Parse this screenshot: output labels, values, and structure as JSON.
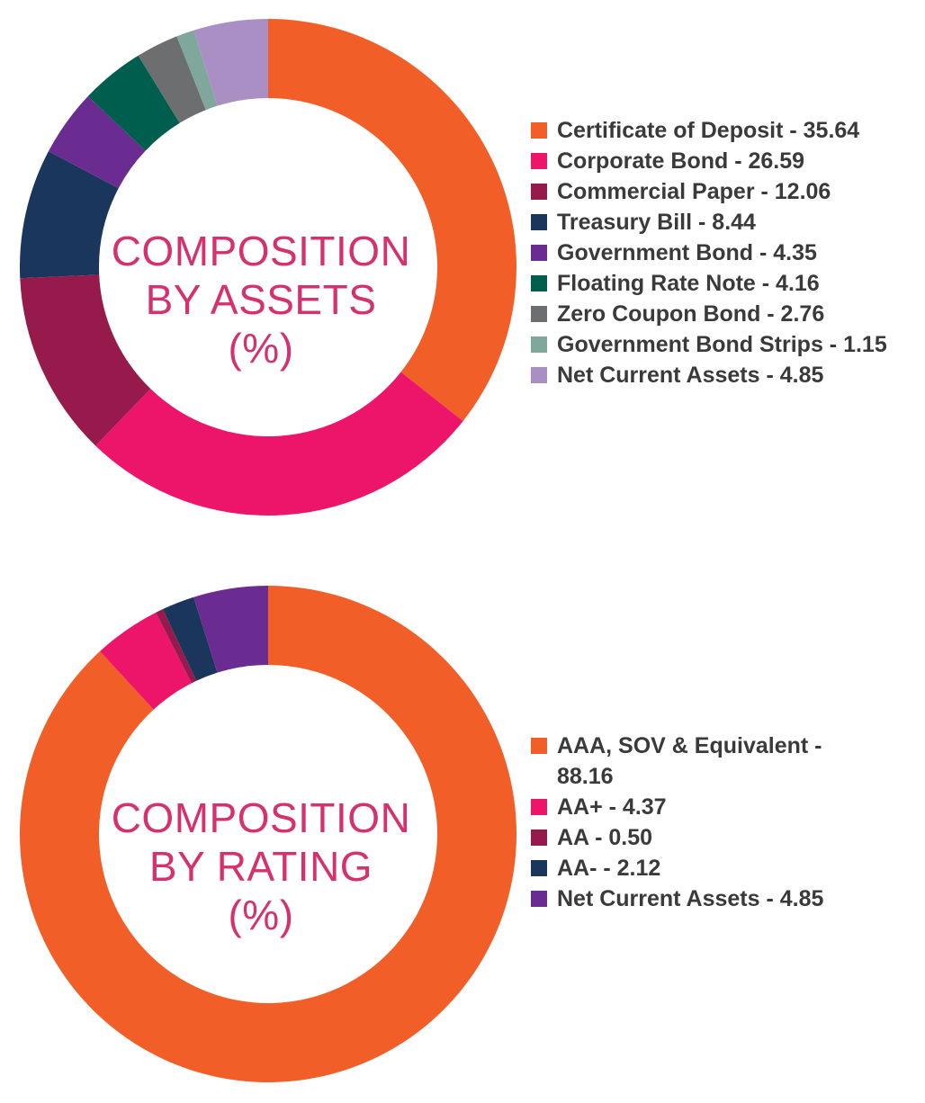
{
  "chart_data": [
    {
      "type": "pie",
      "center_text": [
        "COMPOSITION",
        "BY ASSETS",
        "(%)"
      ],
      "legend_placement": "right",
      "series": [
        {
          "name": "Certificate of Deposit",
          "value": 35.64,
          "label": "Certificate of Deposit - 35.64",
          "color": "#f15e28"
        },
        {
          "name": "Corporate Bond",
          "value": 26.59,
          "label": "Corporate Bond - 26.59",
          "color": "#ed1569"
        },
        {
          "name": "Commercial Paper",
          "value": 12.06,
          "label": "Commercial Paper - 12.06",
          "color": "#961a4c"
        },
        {
          "name": "Treasury Bill",
          "value": 8.44,
          "label": "Treasury Bill - 8.44",
          "color": "#1b365d"
        },
        {
          "name": "Government Bond",
          "value": 4.35,
          "label": "Government Bond - 4.35",
          "color": "#6a2c91"
        },
        {
          "name": "Floating Rate Note",
          "value": 4.16,
          "label": "Floating Rate Note - 4.16",
          "color": "#005e4f"
        },
        {
          "name": "Zero Coupon Bond",
          "value": 2.76,
          "label": "Zero Coupon Bond - 2.76",
          "color": "#6d6e70"
        },
        {
          "name": "Government Bond Strips",
          "value": 1.15,
          "label": "Government Bond Strips - 1.15",
          "color": "#7fa79c"
        },
        {
          "name": "Net Current Assets",
          "value": 4.85,
          "label": "Net Current Assets - 4.85",
          "color": "#a98fc3"
        }
      ]
    },
    {
      "type": "pie",
      "center_text": [
        "COMPOSITION",
        "BY RATING",
        "(%)"
      ],
      "legend_placement": "right",
      "series": [
        {
          "name": "AAA, SOV & Equivalent",
          "value": 88.16,
          "label": "AAA, SOV & Equivalent - 88.16",
          "color": "#f15e28"
        },
        {
          "name": "AA+",
          "value": 4.37,
          "label": "AA+ - 4.37",
          "color": "#ed1569"
        },
        {
          "name": "AA",
          "value": 0.5,
          "label": "AA - 0.50",
          "color": "#961a4c"
        },
        {
          "name": "AA-",
          "value": 2.12,
          "label": "AA- - 2.12",
          "color": "#1b365d"
        },
        {
          "name": "Net Current Assets",
          "value": 4.85,
          "label": "Net Current Assets - 4.85",
          "color": "#6a2c91"
        }
      ]
    }
  ]
}
